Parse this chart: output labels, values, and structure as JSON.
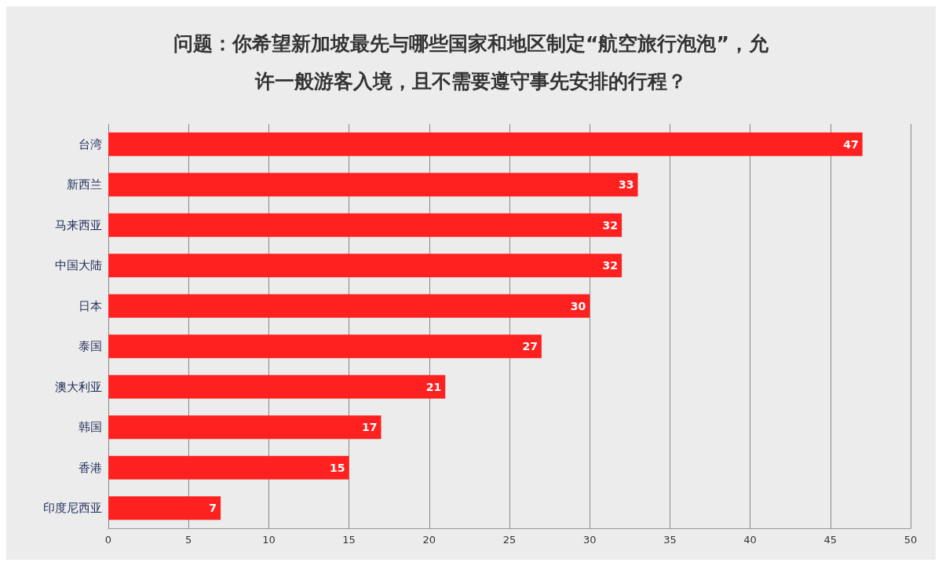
{
  "chart_data": {
    "type": "bar",
    "orientation": "horizontal",
    "title": "问题：你希望新加坡最先与哪些国家和地区制定“航空旅行泡泡”，允许一般游客入境，且不需要遵守事先安排的行程？",
    "categories": [
      "台湾",
      "新西兰",
      "马来西亚",
      "中国大陆",
      "日本",
      "泰国",
      "澳大利亚",
      "韩国",
      "香港",
      "印度尼西亚"
    ],
    "values": [
      47,
      33,
      32,
      32,
      30,
      27,
      21,
      17,
      15,
      7
    ],
    "color": "#ff2020",
    "xlim": [
      0,
      50
    ],
    "xticks": [
      0,
      5,
      10,
      15,
      20,
      25,
      30,
      35,
      40,
      45,
      50
    ],
    "grid": "x",
    "data_labels": true
  }
}
